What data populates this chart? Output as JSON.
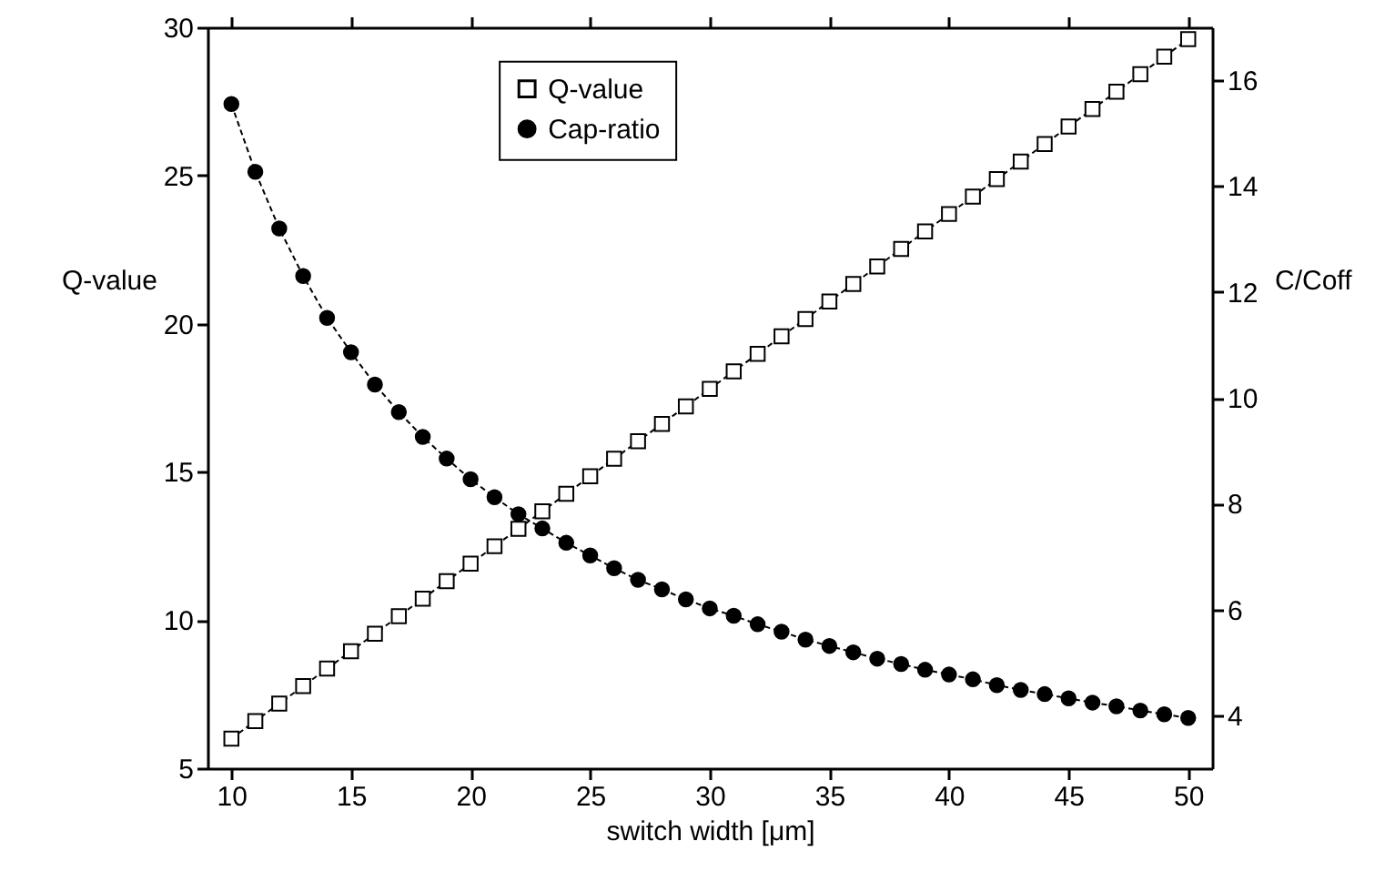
{
  "chart_data": {
    "type": "line",
    "xlabel": "switch width [μm]",
    "ylabel": "Q-value",
    "y2label": "C/Coff",
    "x": [
      10,
      11,
      12,
      13,
      14,
      15,
      16,
      17,
      18,
      19,
      20,
      21,
      22,
      23,
      24,
      25,
      26,
      27,
      28,
      29,
      30,
      31,
      32,
      33,
      34,
      35,
      36,
      37,
      38,
      39,
      40,
      41,
      42,
      43,
      44,
      45,
      46,
      47,
      48,
      49,
      50
    ],
    "series": [
      {
        "name": "Q-value",
        "color": "#000000",
        "marker": "square",
        "line_style": "dashed",
        "values": [
          6.0,
          6.59,
          7.18,
          7.77,
          8.36,
          8.95,
          9.54,
          10.13,
          10.72,
          11.31,
          11.9,
          12.49,
          13.08,
          13.67,
          14.26,
          14.85,
          15.44,
          16.03,
          16.62,
          17.21,
          17.8,
          18.39,
          18.98,
          19.57,
          20.16,
          20.75,
          21.34,
          21.93,
          22.52,
          23.11,
          23.7,
          24.29,
          24.88,
          25.47,
          26.06,
          26.65,
          27.24,
          27.83,
          28.42,
          29.01,
          29.6
        ]
      },
      {
        "name": "Cap-ratio",
        "color": "#000000",
        "marker": "circle",
        "axis": "y2",
        "line_style": "dashed",
        "values": [
          15.55,
          14.27,
          13.2,
          12.3,
          11.51,
          10.86,
          10.25,
          9.73,
          9.26,
          8.85,
          8.46,
          8.12,
          7.8,
          7.53,
          7.26,
          7.02,
          6.78,
          6.56,
          6.38,
          6.19,
          6.02,
          5.88,
          5.72,
          5.58,
          5.43,
          5.31,
          5.19,
          5.07,
          4.97,
          4.86,
          4.77,
          4.68,
          4.57,
          4.48,
          4.4,
          4.32,
          4.24,
          4.17,
          4.09,
          4.02,
          3.95
        ]
      }
    ],
    "xlim": [
      9,
      51
    ],
    "xticks": [
      10,
      15,
      20,
      25,
      30,
      35,
      40,
      45,
      50
    ],
    "ylim": [
      5,
      30
    ],
    "yticks": [
      5,
      10,
      15,
      20,
      25,
      30
    ],
    "y2lim": [
      3,
      17
    ],
    "y2ticks": [
      4,
      6,
      8,
      10,
      12,
      14,
      16
    ],
    "legend": "top",
    "grid": false
  }
}
